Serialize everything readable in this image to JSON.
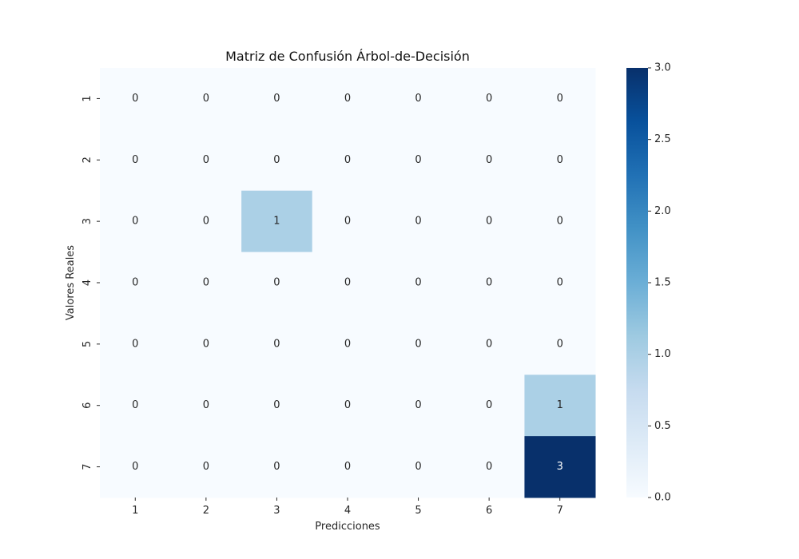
{
  "chart_data": {
    "type": "heatmap",
    "title": "Matriz de Confusión Árbol-de-Decisión",
    "xlabel": "Predicciones",
    "ylabel": "Valores Reales",
    "x_categories": [
      "1",
      "2",
      "3",
      "4",
      "5",
      "6",
      "7"
    ],
    "y_categories": [
      "1",
      "2",
      "3",
      "4",
      "5",
      "6",
      "7"
    ],
    "matrix": [
      [
        0,
        0,
        0,
        0,
        0,
        0,
        0
      ],
      [
        0,
        0,
        0,
        0,
        0,
        0,
        0
      ],
      [
        0,
        0,
        1,
        0,
        0,
        0,
        0
      ],
      [
        0,
        0,
        0,
        0,
        0,
        0,
        0
      ],
      [
        0,
        0,
        0,
        0,
        0,
        0,
        0
      ],
      [
        0,
        0,
        0,
        0,
        0,
        0,
        1
      ],
      [
        0,
        0,
        0,
        0,
        0,
        0,
        3
      ]
    ],
    "cell_labels": [
      [
        "0",
        "0",
        "0",
        "0",
        "0",
        "0",
        "0"
      ],
      [
        "0",
        "0",
        "0",
        "0",
        "0",
        "0",
        "0"
      ],
      [
        "0",
        "0",
        "1",
        "0",
        "0",
        "0",
        "0"
      ],
      [
        "0",
        "0",
        "0",
        "0",
        "0",
        "0",
        "0"
      ],
      [
        "0",
        "0",
        "0",
        "0",
        "0",
        "0",
        "0"
      ],
      [
        "0",
        "0",
        "0",
        "0",
        "0",
        "0",
        "1"
      ],
      [
        "0",
        "0",
        "0",
        "0",
        "0",
        "0",
        "3"
      ]
    ],
    "colormap": "Blues",
    "vmin": 0,
    "vmax": 3,
    "colorbar_ticks": [
      0.0,
      0.5,
      1.0,
      1.5,
      2.0,
      2.5,
      3.0
    ],
    "colorbar_tick_labels": [
      "0.0",
      "0.5",
      "1.0",
      "1.5",
      "2.0",
      "2.5",
      "3.0"
    ],
    "grid": false,
    "legend": "colorbar-right"
  }
}
